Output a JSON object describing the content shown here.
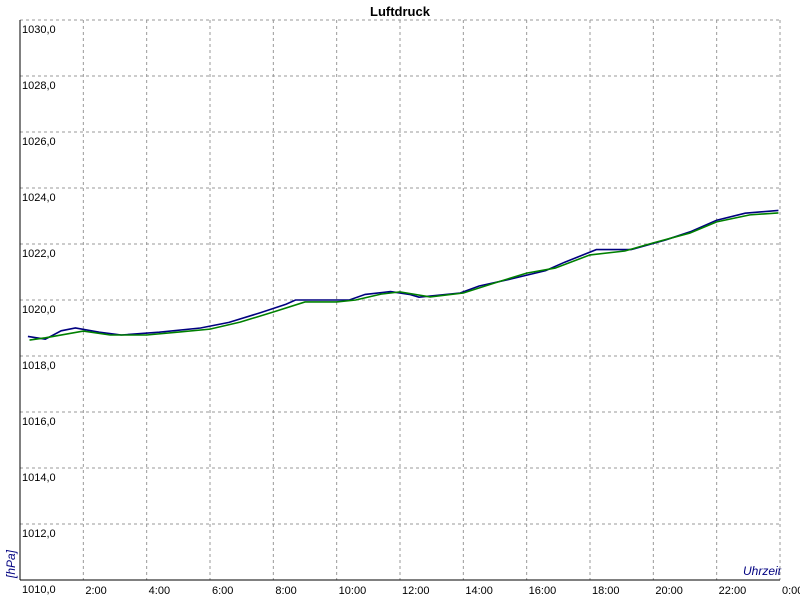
{
  "chart_data": {
    "type": "line",
    "title": "Luftdruck",
    "y_label": "[hPa]",
    "x_label": "Uhrzeit",
    "xlim": [
      0,
      24
    ],
    "ylim": [
      1010,
      1030
    ],
    "grid": true,
    "xticks": [
      {
        "value": 2,
        "label": "2:00"
      },
      {
        "value": 4,
        "label": "4:00"
      },
      {
        "value": 6,
        "label": "6:00"
      },
      {
        "value": 8,
        "label": "8:00"
      },
      {
        "value": 10,
        "label": "10:00"
      },
      {
        "value": 12,
        "label": "12:00"
      },
      {
        "value": 14,
        "label": "14:00"
      },
      {
        "value": 16,
        "label": "16:00"
      },
      {
        "value": 18,
        "label": "18:00"
      },
      {
        "value": 20,
        "label": "20:00"
      },
      {
        "value": 22,
        "label": "22:00"
      },
      {
        "value": 24,
        "label": "0:00"
      }
    ],
    "yticks": [
      {
        "value": 1010,
        "label": "1010,0"
      },
      {
        "value": 1012,
        "label": "1012,0"
      },
      {
        "value": 1014,
        "label": "1014,0"
      },
      {
        "value": 1016,
        "label": "1016,0"
      },
      {
        "value": 1018,
        "label": "1018,0"
      },
      {
        "value": 1020,
        "label": "1020,0"
      },
      {
        "value": 1022,
        "label": "1022,0"
      },
      {
        "value": 1024,
        "label": "1024,0"
      },
      {
        "value": 1026,
        "label": "1026,0"
      },
      {
        "value": 1028,
        "label": "1028,0"
      },
      {
        "value": 1030,
        "label": "1030,0"
      }
    ],
    "series": [
      {
        "color": "#000080",
        "x": [
          0.25,
          0.8,
          1.3,
          1.75,
          2.5,
          3.2,
          4.4,
          5.7,
          6.6,
          7.6,
          8.4,
          8.7,
          10.4,
          10.9,
          11.7,
          12.3,
          12.6,
          13.9,
          14.5,
          15.5,
          16.6,
          17.2,
          18.2,
          19.3,
          20.4,
          21.2,
          22,
          22.9,
          23.95
        ],
        "values": [
          1018.7,
          1018.6,
          1018.9,
          1019.0,
          1018.85,
          1018.75,
          1018.85,
          1019.0,
          1019.2,
          1019.55,
          1019.85,
          1020.0,
          1020.0,
          1020.2,
          1020.3,
          1020.2,
          1020.1,
          1020.25,
          1020.5,
          1020.75,
          1021.05,
          1021.35,
          1021.8,
          1021.8,
          1022.15,
          1022.45,
          1022.85,
          1023.1,
          1023.2
        ]
      },
      {
        "color": "#008000",
        "x": [
          0.3,
          0.8,
          2.0,
          2.85,
          4.0,
          5.05,
          6.0,
          6.95,
          8.0,
          9.0,
          10,
          10.6,
          11.4,
          12,
          12.95,
          14,
          15,
          16,
          16.9,
          18,
          19.1,
          20,
          21.15,
          22,
          23.05,
          23.95
        ],
        "values": [
          1018.57,
          1018.65,
          1018.89,
          1018.75,
          1018.75,
          1018.86,
          1018.96,
          1019.21,
          1019.57,
          1019.93,
          1019.93,
          1020.0,
          1020.21,
          1020.29,
          1020.11,
          1020.25,
          1020.61,
          1020.96,
          1021.14,
          1021.61,
          1021.75,
          1022.04,
          1022.39,
          1022.79,
          1023.04,
          1023.11
        ]
      }
    ]
  }
}
